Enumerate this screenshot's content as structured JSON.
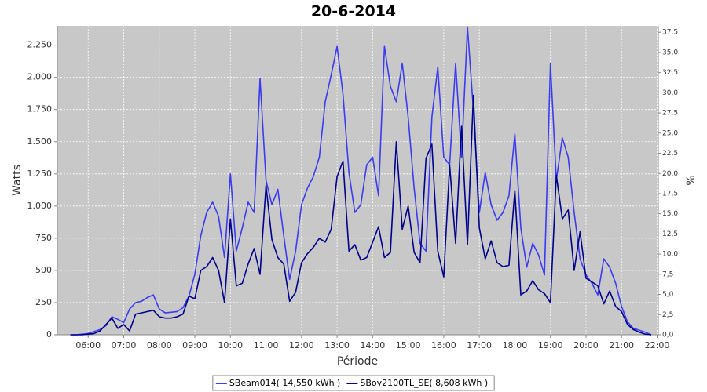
{
  "chart_data": {
    "type": "line",
    "title": "20-6-2014",
    "x_label": "Période",
    "y_label": "Watts",
    "y2_label": "%",
    "x": [
      "05:30",
      "05:40",
      "05:50",
      "06:00",
      "06:10",
      "06:20",
      "06:30",
      "06:40",
      "06:50",
      "07:00",
      "07:10",
      "07:20",
      "07:30",
      "07:40",
      "07:50",
      "08:00",
      "08:10",
      "08:20",
      "08:30",
      "08:40",
      "08:50",
      "09:00",
      "09:10",
      "09:20",
      "09:30",
      "09:40",
      "09:50",
      "10:00",
      "10:10",
      "10:20",
      "10:30",
      "10:40",
      "10:50",
      "11:00",
      "11:10",
      "11:20",
      "11:30",
      "11:40",
      "11:50",
      "12:00",
      "12:10",
      "12:20",
      "12:30",
      "12:40",
      "12:50",
      "13:00",
      "13:10",
      "13:20",
      "13:30",
      "13:40",
      "13:50",
      "14:00",
      "14:10",
      "14:20",
      "14:30",
      "14:40",
      "14:50",
      "15:00",
      "15:10",
      "15:20",
      "15:30",
      "15:40",
      "15:50",
      "16:00",
      "16:10",
      "16:20",
      "16:30",
      "16:40",
      "16:50",
      "17:00",
      "17:10",
      "17:20",
      "17:30",
      "17:40",
      "17:50",
      "18:00",
      "18:10",
      "18:20",
      "18:30",
      "18:40",
      "18:50",
      "19:00",
      "19:10",
      "19:20",
      "19:30",
      "19:40",
      "19:50",
      "20:00",
      "20:10",
      "20:20",
      "20:30",
      "20:40",
      "20:50",
      "21:00",
      "21:10",
      "21:20",
      "21:30",
      "21:40",
      "21:50"
    ],
    "series": [
      {
        "name": "SBeam014( 14,550 kWh )",
        "color": "#3b3bf0",
        "values": [
          0,
          0,
          5,
          10,
          25,
          40,
          70,
          140,
          120,
          95,
          200,
          250,
          260,
          290,
          310,
          200,
          170,
          175,
          180,
          210,
          300,
          470,
          770,
          950,
          1030,
          920,
          600,
          1250,
          650,
          830,
          1030,
          950,
          1990,
          1200,
          1010,
          1130,
          770,
          430,
          650,
          1010,
          1140,
          1230,
          1380,
          1810,
          2020,
          2240,
          1870,
          1260,
          950,
          1010,
          1320,
          1380,
          1080,
          2240,
          1930,
          1810,
          2110,
          1690,
          1140,
          710,
          650,
          1690,
          2080,
          1380,
          1320,
          2110,
          1380,
          2390,
          1750,
          950,
          1260,
          1010,
          890,
          950,
          1080,
          1560,
          830,
          525,
          710,
          620,
          465,
          2110,
          1200,
          1530,
          1380,
          950,
          590,
          465,
          400,
          310,
          590,
          525,
          400,
          220,
          100,
          50,
          35,
          20,
          0
        ]
      },
      {
        "name": "SBoy2100TL_SE( 8,608 kWh )",
        "color": "#00008b",
        "values": [
          0,
          0,
          0,
          5,
          10,
          30,
          80,
          130,
          50,
          80,
          30,
          160,
          170,
          180,
          190,
          140,
          130,
          130,
          140,
          160,
          300,
          280,
          500,
          530,
          600,
          500,
          250,
          900,
          380,
          400,
          550,
          670,
          470,
          1160,
          740,
          600,
          550,
          260,
          330,
          560,
          630,
          680,
          750,
          720,
          820,
          1230,
          1350,
          650,
          700,
          580,
          600,
          720,
          840,
          600,
          640,
          1500,
          820,
          1000,
          640,
          560,
          1370,
          1480,
          650,
          450,
          1320,
          710,
          1620,
          700,
          1860,
          830,
          590,
          730,
          560,
          530,
          540,
          1120,
          310,
          340,
          420,
          350,
          320,
          250,
          1240,
          900,
          970,
          500,
          800,
          440,
          410,
          380,
          240,
          340,
          220,
          180,
          80,
          40,
          20,
          5,
          0
        ]
      }
    ],
    "xlim": [
      "05:08",
      "22:02"
    ],
    "xticks": [
      "06:00",
      "07:00",
      "08:00",
      "09:00",
      "10:00",
      "11:00",
      "12:00",
      "13:00",
      "14:00",
      "15:00",
      "16:00",
      "17:00",
      "18:00",
      "19:00",
      "20:00",
      "21:00",
      "22:00"
    ],
    "ylim": [
      0,
      2400
    ],
    "yticks": [
      0,
      250,
      500,
      750,
      {
        "value": 1000,
        "label": "1.000"
      },
      {
        "value": 1250,
        "label": "1.250"
      },
      {
        "value": 1500,
        "label": "1.500"
      },
      {
        "value": 1750,
        "label": "1.750"
      },
      {
        "value": 2000,
        "label": "2.000"
      },
      {
        "value": 2250,
        "label": "2.250"
      }
    ],
    "y2lim": [
      0,
      38.3
    ],
    "y2ticks": [
      {
        "value": 0,
        "label": "0,0"
      },
      {
        "value": 2.5,
        "label": "2,5"
      },
      {
        "value": 5,
        "label": "5,0"
      },
      {
        "value": 7.5,
        "label": "7,5"
      },
      {
        "value": 10,
        "label": "10,0"
      },
      {
        "value": 12.5,
        "label": "12,5"
      },
      {
        "value": 15,
        "label": "15,0"
      },
      {
        "value": 17.5,
        "label": "17,5"
      },
      {
        "value": 20,
        "label": "20,0"
      },
      {
        "value": 22.5,
        "label": "22,5"
      },
      {
        "value": 25,
        "label": "25,0"
      },
      {
        "value": 27.5,
        "label": "27,5"
      },
      {
        "value": 30,
        "label": "30,0"
      },
      {
        "value": 32.5,
        "label": "32,5"
      },
      {
        "value": 35,
        "label": "35,0"
      },
      {
        "value": 37.5,
        "label": "37,5"
      }
    ],
    "grid": true,
    "plot_background": "#c8c8c8",
    "legend_position": "bottom"
  }
}
